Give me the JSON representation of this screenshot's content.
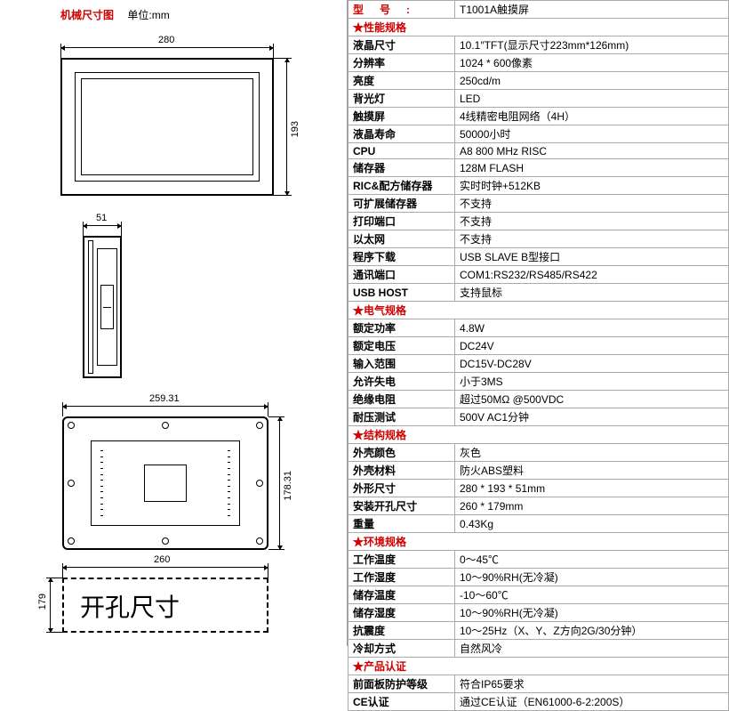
{
  "left": {
    "title": "机械尺寸图",
    "unit_prefix": "单位:",
    "unit": "mm",
    "dims": {
      "front_w": "280",
      "front_h": "193",
      "side_w": "51",
      "back_w": "259.31",
      "back_h": "178.31",
      "cutout_w": "260",
      "cutout_h": "179"
    },
    "cutout_text": "开孔尺寸"
  },
  "table": {
    "model_label": "型号:",
    "model_value": "T1001A触摸屏",
    "sections": [
      {
        "title": "★性能规格",
        "rows": [
          [
            "液晶尺寸",
            "10.1″TFT(显示尺寸223mm*126mm)"
          ],
          [
            "分辨率",
            "1024 * 600像素"
          ],
          [
            "亮度",
            "250cd/m"
          ],
          [
            "背光灯",
            "LED"
          ],
          [
            "触摸屏",
            "4线精密电阻网络（4H）"
          ],
          [
            "液晶寿命",
            "50000小时"
          ],
          [
            "CPU",
            "A8 800 MHz RISC"
          ],
          [
            "储存器",
            "128M FLASH"
          ],
          [
            "RIC&配方储存器",
            "实时时钟+512KB"
          ],
          [
            "可扩展储存器",
            "不支持"
          ],
          [
            "打印端口",
            "不支持"
          ],
          [
            "以太网",
            "不支持"
          ],
          [
            "程序下载",
            "USB SLAVE B型接口"
          ],
          [
            "通讯端口",
            "COM1:RS232/RS485/RS422"
          ],
          [
            "USB HOST",
            "支持鼠标"
          ]
        ]
      },
      {
        "title": "★电气规格",
        "rows": [
          [
            "额定功率",
            "4.8W"
          ],
          [
            "额定电压",
            "DC24V"
          ],
          [
            "输入范围",
            "DC15V-DC28V"
          ],
          [
            "允许失电",
            "小于3MS"
          ],
          [
            "绝缘电阻",
            "超过50MΩ @500VDC"
          ],
          [
            "耐压测试",
            "500V AC1分钟"
          ]
        ]
      },
      {
        "title": "★结构规格",
        "rows": [
          [
            "外壳颜色",
            "灰色"
          ],
          [
            "外壳材料",
            "防火ABS塑料"
          ],
          [
            "外形尺寸",
            "280 * 193 * 51mm"
          ],
          [
            "安装开孔尺寸",
            "260 * 179mm"
          ],
          [
            "重量",
            "0.43Kg"
          ]
        ]
      },
      {
        "title": "★环境规格",
        "rows": [
          [
            "工作温度",
            "0～45℃"
          ],
          [
            "工作湿度",
            "10～90%RH(无冷凝)"
          ],
          [
            "储存温度",
            "-10～60℃"
          ],
          [
            "储存湿度",
            "10～90%RH(无冷凝)"
          ],
          [
            "抗震度",
            "10～25Hz（X、Y、Z方向2G/30分钟）"
          ],
          [
            "冷却方式",
            "自然风冷"
          ]
        ]
      },
      {
        "title": "★产品认证",
        "rows": [
          [
            "前面板防护等级",
            "符合IP65要求"
          ],
          [
            "CE认证",
            "通过CE认证（EN61000-6-2:200S）"
          ]
        ]
      }
    ]
  },
  "colors": {
    "red": "#d00000",
    "border": "#aaaaaa"
  }
}
